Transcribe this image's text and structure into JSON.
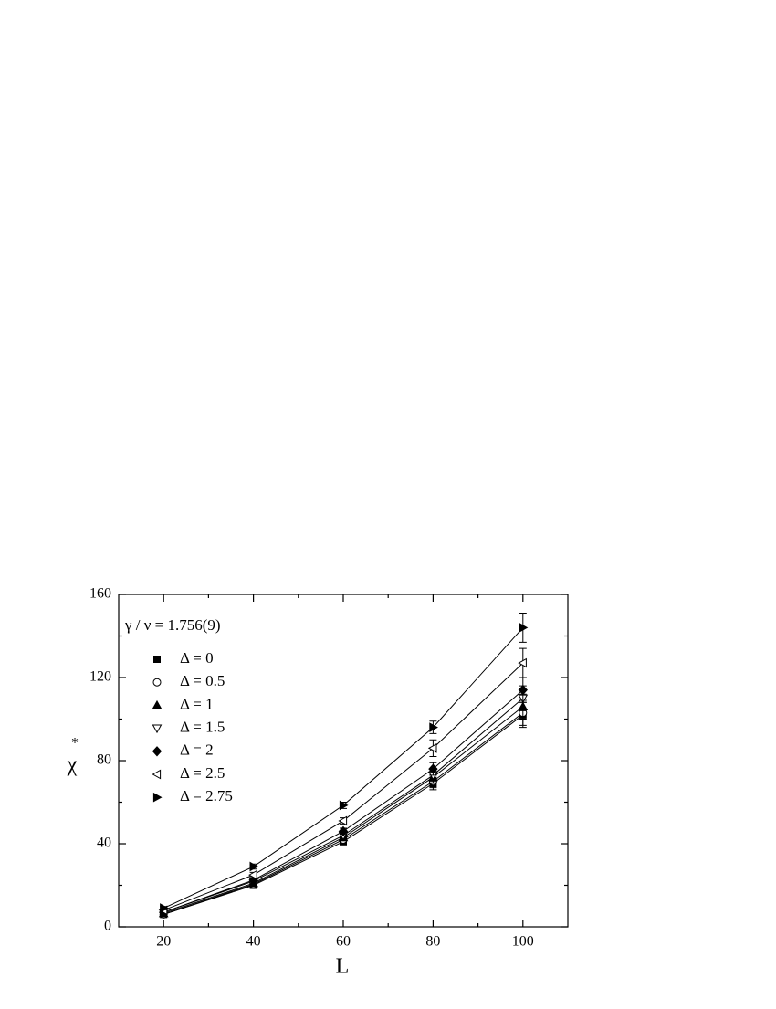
{
  "chart_data": {
    "type": "line",
    "x_label": "L",
    "y_label": "χ",
    "y_label_sup": "*",
    "annotation": "γ / ν = 1.756(9)",
    "x": [
      20,
      40,
      60,
      80,
      100
    ],
    "xlim": [
      10,
      110
    ],
    "xticks": [
      20,
      40,
      60,
      80,
      100
    ],
    "xminorticks": [
      30,
      50,
      70,
      90
    ],
    "ylim": [
      0,
      160
    ],
    "yticks": [
      0,
      40,
      80,
      120,
      160
    ],
    "yminorticks": [
      20,
      60,
      100,
      140
    ],
    "legend": "upper-left",
    "series": [
      {
        "name": "Δ = 0",
        "color": "#000000",
        "marker": "square",
        "filled": true,
        "values": [
          6,
          20,
          41,
          69,
          102
        ],
        "errors": [
          0.5,
          1,
          1.5,
          3,
          6
        ]
      },
      {
        "name": "Δ = 0.5",
        "color": "#000000",
        "marker": "circle",
        "filled": false,
        "values": [
          6,
          20.5,
          42,
          70,
          103
        ],
        "errors": [
          0.5,
          1,
          1.5,
          3,
          6
        ]
      },
      {
        "name": "Δ = 1",
        "color": "#000000",
        "marker": "triangle-up",
        "filled": true,
        "values": [
          6.5,
          21,
          43,
          72,
          106
        ],
        "errors": [
          0.5,
          1,
          1.5,
          3,
          6
        ]
      },
      {
        "name": "Δ = 1.5",
        "color": "#000000",
        "marker": "triangle-down",
        "filled": false,
        "values": [
          7,
          22,
          44,
          73,
          110
        ],
        "errors": [
          0.5,
          1,
          1.5,
          3,
          6
        ]
      },
      {
        "name": "Δ = 2",
        "color": "#000000",
        "marker": "diamond",
        "filled": true,
        "values": [
          7,
          22.5,
          46,
          76,
          114
        ],
        "errors": [
          0.5,
          1,
          1.5,
          3,
          6
        ]
      },
      {
        "name": "Δ = 2.5",
        "color": "#000000",
        "marker": "triangle-left",
        "filled": false,
        "values": [
          8,
          25,
          51,
          86,
          127
        ],
        "errors": [
          0.7,
          1.2,
          1.5,
          4,
          7
        ]
      },
      {
        "name": "Δ = 2.75",
        "color": "#000000",
        "marker": "triangle-right",
        "filled": true,
        "values": [
          9,
          29,
          58.5,
          96,
          144
        ],
        "errors": [
          0.8,
          1.2,
          1.5,
          3,
          7
        ]
      }
    ]
  }
}
